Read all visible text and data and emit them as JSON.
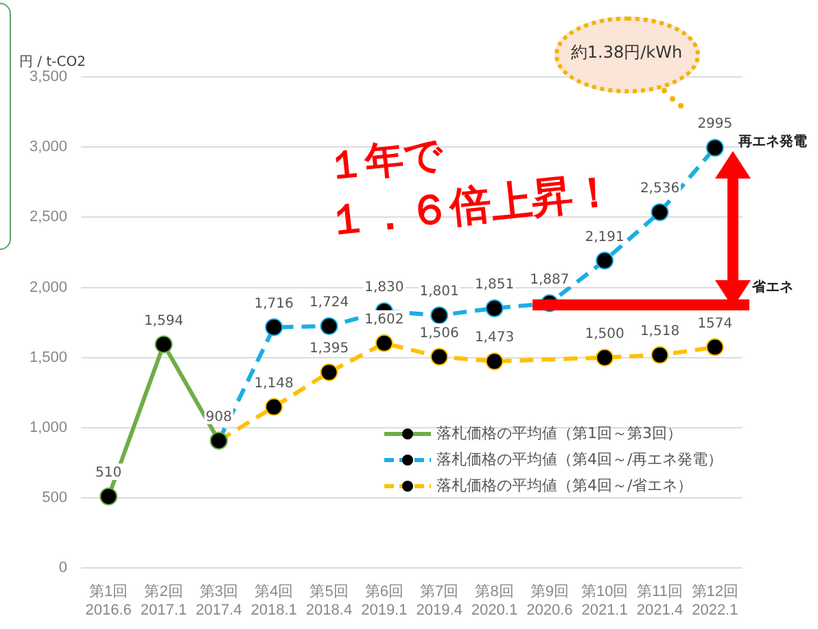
{
  "chart_data": {
    "type": "line",
    "ylabel": "円 / t-CO2",
    "categories": [
      "第1回\n2016.6",
      "第2回\n2017.1",
      "第3回\n2017.4",
      "第4回\n2018.1",
      "第5回\n2018.4",
      "第6回\n2019.1",
      "第7回\n2019.4",
      "第8回\n2020.1",
      "第9回\n2020.6",
      "第10回\n2021.1",
      "第11回\n2021.4",
      "第12回\n2022.1"
    ],
    "series": [
      {
        "name": "落札価格の平均値（第1回～第3回）",
        "color": "#70ad47",
        "line_style": "solid",
        "values": [
          510,
          1594,
          908,
          null,
          null,
          null,
          null,
          null,
          null,
          null,
          null,
          null
        ],
        "value_labels": [
          "510",
          "1,594",
          "908",
          null,
          null,
          null,
          null,
          null,
          null,
          null,
          null,
          null
        ]
      },
      {
        "name": "落札価格の平均値（第4回～/再エネ発電）",
        "color": "#1cade4",
        "line_style": "dashed",
        "values": [
          null,
          null,
          908,
          1716,
          1724,
          1830,
          1801,
          1851,
          1887,
          2191,
          2536,
          2995
        ],
        "value_labels": [
          null,
          null,
          null,
          "1,716",
          "1,724",
          "1,830",
          "1,801",
          "1,851",
          "1,887",
          "2,191",
          "2,536",
          "2995"
        ]
      },
      {
        "name": "落札価格の平均値（第4回～/省エネ）",
        "color": "#ffc000",
        "line_style": "dashed",
        "values": [
          null,
          null,
          908,
          1148,
          1395,
          1602,
          1506,
          1473,
          null,
          1500,
          1518,
          1574
        ],
        "value_labels": [
          null,
          null,
          null,
          "1,148",
          "1,395",
          "1,602",
          "1,506",
          "1,473",
          null,
          "1,500",
          "1,518",
          "1574"
        ]
      }
    ],
    "ylim": [
      0,
      3500
    ],
    "yticks": [
      0,
      500,
      {
        "value": 1000,
        "label": "1,000"
      },
      {
        "value": 1500,
        "label": "1,500"
      },
      {
        "value": 2000,
        "label": "2,000"
      },
      {
        "value": 2500,
        "label": "2,500"
      },
      {
        "value": 3000,
        "label": "3,000"
      },
      {
        "value": 3500,
        "label": "3,500"
      }
    ],
    "grid": "y",
    "legend": "right",
    "marker": "circle",
    "annotations": [
      "約1.38円/kWh",
      "１年で",
      "１．６倍上昇！",
      "再エネ発電",
      "省エネ"
    ]
  }
}
